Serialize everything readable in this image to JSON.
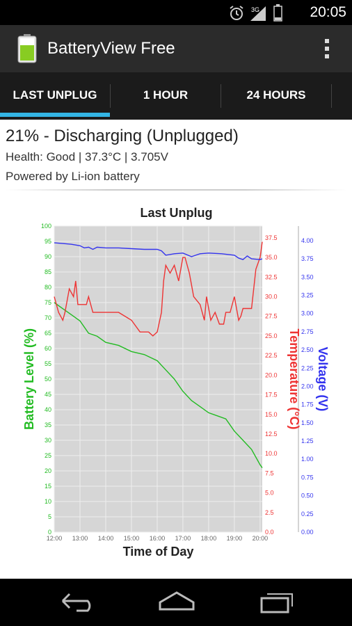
{
  "status_bar": {
    "time": "20:05",
    "network": "3G"
  },
  "app": {
    "title": "BatteryView Free"
  },
  "tabs": [
    {
      "label": "LAST UNPLUG"
    },
    {
      "label": "1 HOUR"
    },
    {
      "label": "24 HOURS"
    }
  ],
  "battery": {
    "status": "21% - Discharging (Unplugged)",
    "details": "Health: Good | 37.3°C | 3.705V",
    "power": "Powered by Li-ion battery"
  },
  "colors": {
    "accent": "#33b5e5",
    "level": "#22bb22",
    "temperature": "#ee3333",
    "voltage": "#3333ee",
    "plot_bg": "#d6d6d6"
  },
  "chart_data": {
    "type": "line",
    "title": "Last Unplug",
    "xlabel": "Time of Day",
    "x_ticks": [
      "12:00",
      "13:00",
      "14:00",
      "15:00",
      "16:00",
      "17:00",
      "18:00",
      "19:00",
      "20:00"
    ],
    "xlim": [
      "12:00",
      "20:05"
    ],
    "axes": {
      "level": {
        "label": "Battery Level (%)",
        "ylim": [
          0,
          100
        ],
        "ticks": [
          "0",
          "5",
          "10",
          "15",
          "20",
          "25",
          "30",
          "35",
          "40",
          "45",
          "50",
          "55",
          "60",
          "65",
          "70",
          "75",
          "80",
          "85",
          "90",
          "95",
          "100"
        ]
      },
      "temperature": {
        "label": "Temperature (°C)",
        "ylim": [
          0,
          39
        ],
        "ticks": [
          "0.0",
          "2.5",
          "5.0",
          "7.5",
          "10.0",
          "12.5",
          "15.0",
          "17.5",
          "20.0",
          "22.5",
          "25.0",
          "27.5",
          "30.0",
          "32.5",
          "35.0",
          "37.5"
        ]
      },
      "voltage": {
        "label": "Voltage (V)",
        "ylim": [
          0,
          4.2
        ],
        "ticks": [
          "0.00",
          "0.25",
          "0.50",
          "0.75",
          "1.00",
          "1.25",
          "1.50",
          "1.75",
          "2.00",
          "2.25",
          "2.50",
          "2.75",
          "3.00",
          "3.25",
          "3.50",
          "3.75",
          "4.00"
        ]
      }
    },
    "series": [
      {
        "name": "Battery Level (%)",
        "axis": "level",
        "x": [
          "12:00",
          "12:20",
          "12:40",
          "13:00",
          "13:20",
          "13:40",
          "14:00",
          "14:30",
          "15:00",
          "15:30",
          "16:00",
          "16:20",
          "16:40",
          "17:00",
          "17:20",
          "17:40",
          "18:00",
          "18:20",
          "18:40",
          "19:00",
          "19:20",
          "19:40",
          "20:00",
          "20:05"
        ],
        "y": [
          75,
          73,
          71,
          69,
          65,
          64,
          62,
          61,
          59,
          58,
          56,
          53,
          50,
          46,
          43,
          41,
          39,
          38,
          37,
          33,
          30,
          27,
          22,
          21
        ]
      },
      {
        "name": "Temperature (°C)",
        "axis": "temperature",
        "x": [
          "12:00",
          "12:10",
          "12:20",
          "12:25",
          "12:35",
          "12:45",
          "12:50",
          "12:55",
          "13:05",
          "13:15",
          "13:20",
          "13:30",
          "13:45",
          "14:00",
          "14:30",
          "15:00",
          "15:20",
          "15:40",
          "15:50",
          "16:00",
          "16:10",
          "16:15",
          "16:20",
          "16:30",
          "16:40",
          "16:50",
          "17:00",
          "17:05",
          "17:15",
          "17:25",
          "17:40",
          "17:50",
          "17:55",
          "18:05",
          "18:15",
          "18:25",
          "18:35",
          "18:40",
          "18:50",
          "19:00",
          "19:10",
          "19:15",
          "19:20",
          "19:30",
          "19:40",
          "19:50",
          "20:00",
          "20:05"
        ],
        "y": [
          30,
          28,
          27,
          28,
          31,
          30,
          32,
          29,
          29,
          29,
          30,
          28,
          28,
          28,
          28,
          27,
          25.5,
          25.5,
          25,
          25.5,
          28,
          32,
          34,
          33,
          34,
          32,
          35,
          35,
          33,
          30,
          29,
          27,
          30,
          27,
          28,
          26.5,
          26.5,
          28,
          28,
          30,
          27,
          27.5,
          28.5,
          28.5,
          28.5,
          33.5,
          35,
          37
        ]
      },
      {
        "name": "Voltage (V)",
        "axis": "voltage",
        "x": [
          "12:00",
          "12:20",
          "12:40",
          "13:00",
          "13:10",
          "13:20",
          "13:30",
          "13:40",
          "14:00",
          "14:30",
          "15:00",
          "15:30",
          "16:00",
          "16:10",
          "16:20",
          "16:40",
          "17:00",
          "17:20",
          "17:30",
          "17:40",
          "18:00",
          "18:30",
          "19:00",
          "19:10",
          "19:20",
          "19:30",
          "19:40",
          "20:00",
          "20:05"
        ],
        "y": [
          3.97,
          3.96,
          3.95,
          3.93,
          3.9,
          3.91,
          3.88,
          3.91,
          3.9,
          3.9,
          3.89,
          3.88,
          3.88,
          3.86,
          3.8,
          3.82,
          3.83,
          3.78,
          3.8,
          3.82,
          3.83,
          3.82,
          3.8,
          3.76,
          3.74,
          3.79,
          3.75,
          3.74,
          3.75
        ]
      }
    ]
  }
}
